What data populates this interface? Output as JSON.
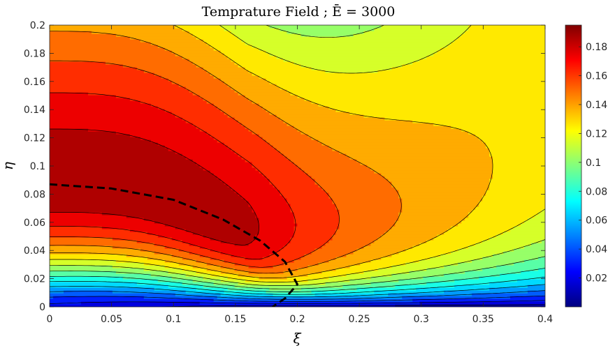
{
  "chart_data": {
    "type": "heatmap",
    "subtype": "filled-contour",
    "title": "Temprature Field ; Ē = 3000",
    "xlabel": "ξ",
    "ylabel": "η",
    "xlim": [
      0,
      0.4
    ],
    "ylim": [
      0,
      0.2
    ],
    "x_ticks": [
      "0",
      "0.05",
      "0.1",
      "0.15",
      "0.2",
      "0.25",
      "0.3",
      "0.35",
      "0.4"
    ],
    "y_ticks": [
      "0",
      "0.02",
      "0.04",
      "0.06",
      "0.08",
      "0.1",
      "0.12",
      "0.14",
      "0.16",
      "0.18",
      "0.2"
    ],
    "colorbar": {
      "colormap": "jet",
      "range": [
        0,
        0.195
      ],
      "ticks": [
        "0.02",
        "0.04",
        "0.06",
        "0.08",
        "0.1",
        "0.12",
        "0.14",
        "0.16",
        "0.18"
      ]
    },
    "contour_levels": [
      0.012,
      0.024,
      0.036,
      0.048,
      0.06,
      0.072,
      0.084,
      0.096,
      0.108,
      0.12,
      0.132,
      0.144,
      0.156,
      0.168,
      0.18,
      0.192
    ],
    "contour_style": "dashed black",
    "peak_value": 0.192,
    "max_locus_curve": {
      "style": "thick dashed black",
      "xi": [
        0,
        0.05,
        0.1,
        0.14,
        0.17,
        0.19,
        0.2,
        0.19,
        0.18
      ],
      "eta": [
        0.087,
        0.084,
        0.076,
        0.062,
        0.047,
        0.032,
        0.016,
        0.006,
        0.0
      ]
    }
  }
}
